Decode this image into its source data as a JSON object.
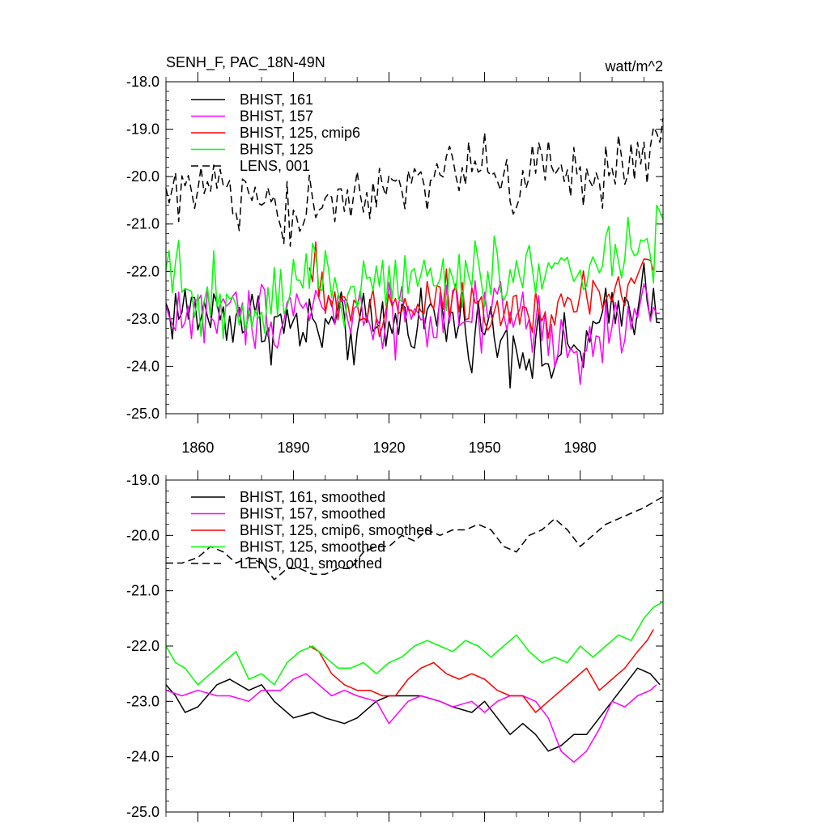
{
  "chart_data": [
    {
      "type": "line",
      "title": "SENH_F, PAC_18N-49N",
      "units_label": "watt/m^2",
      "xlim": [
        1850,
        2006
      ],
      "ylim": [
        -25.0,
        -18.0
      ],
      "y_ticks": [
        -25.0,
        -24.0,
        -23.0,
        -22.0,
        -21.0,
        -20.0,
        -19.0,
        -18.0
      ],
      "y_tick_labels": [
        "-25.0",
        "-24.0",
        "-23.0",
        "-22.0",
        "-21.0",
        "-20.0",
        "-19.0",
        "-18.0"
      ],
      "x_ticks": [
        1860,
        1890,
        1920,
        1950,
        1980
      ],
      "x_tick_labels": [
        "1860",
        "1890",
        "1920",
        "1950",
        "1980"
      ],
      "grid": false,
      "legend_position": "top-left",
      "series": [
        {
          "name": "BHIST, 161",
          "color": "#000000",
          "dash": "solid",
          "start": 1850,
          "end": 2005,
          "levels": [
            [
              1850,
              -22.8
            ],
            [
              1870,
              -22.9
            ],
            [
              1890,
              -23.2
            ],
            [
              1910,
              -23.3
            ],
            [
              1930,
              -22.9
            ],
            [
              1950,
              -23.2
            ],
            [
              1960,
              -23.5
            ],
            [
              1970,
              -23.9
            ],
            [
              1980,
              -23.6
            ],
            [
              1990,
              -23.0
            ],
            [
              2000,
              -22.4
            ],
            [
              2005,
              -22.7
            ]
          ],
          "amplitude": 0.5
        },
        {
          "name": "BHIST, 157",
          "color": "#ff00ff",
          "dash": "solid",
          "start": 1850,
          "end": 2005,
          "levels": [
            [
              1850,
              -22.9
            ],
            [
              1880,
              -22.9
            ],
            [
              1895,
              -22.6
            ],
            [
              1910,
              -22.9
            ],
            [
              1930,
              -22.9
            ],
            [
              1950,
              -23.1
            ],
            [
              1960,
              -22.9
            ],
            [
              1970,
              -23.3
            ],
            [
              1978,
              -24.0
            ],
            [
              1990,
              -23.2
            ],
            [
              2005,
              -22.8
            ]
          ],
          "amplitude": 0.5
        },
        {
          "name": "BHIST, 125, cmip6",
          "color": "#ff0000",
          "dash": "solid",
          "start": 1895,
          "end": 2003,
          "levels": [
            [
              1895,
              -22.1
            ],
            [
              1905,
              -22.7
            ],
            [
              1920,
              -22.9
            ],
            [
              1935,
              -22.4
            ],
            [
              1950,
              -22.6
            ],
            [
              1965,
              -23.1
            ],
            [
              1980,
              -22.5
            ],
            [
              1990,
              -22.6
            ],
            [
              2003,
              -21.7
            ]
          ],
          "amplitude": 0.45
        },
        {
          "name": "BHIST, 125",
          "color": "#00ff00",
          "dash": "solid",
          "start": 1850,
          "end": 2006,
          "levels": [
            [
              1850,
              -22.2
            ],
            [
              1860,
              -22.6
            ],
            [
              1880,
              -22.6
            ],
            [
              1895,
              -22.0
            ],
            [
              1910,
              -22.5
            ],
            [
              1930,
              -22.1
            ],
            [
              1950,
              -22.0
            ],
            [
              1970,
              -22.0
            ],
            [
              1980,
              -22.1
            ],
            [
              1995,
              -21.7
            ],
            [
              2006,
              -21.2
            ]
          ],
          "amplitude": 0.5
        },
        {
          "name": "LENS, 001",
          "color": "#000000",
          "dash": "dashed",
          "start": 1850,
          "end": 2006,
          "levels": [
            [
              1850,
              -20.5
            ],
            [
              1865,
              -20.2
            ],
            [
              1885,
              -20.8
            ],
            [
              1905,
              -20.6
            ],
            [
              1930,
              -20.0
            ],
            [
              1950,
              -19.8
            ],
            [
              1960,
              -20.3
            ],
            [
              1970,
              -19.7
            ],
            [
              1980,
              -20.2
            ],
            [
              1995,
              -19.6
            ],
            [
              2006,
              -19.3
            ]
          ],
          "amplitude": 0.45
        }
      ]
    },
    {
      "type": "line",
      "xlim": [
        1850,
        2006
      ],
      "ylim": [
        -25.0,
        -19.0
      ],
      "y_ticks": [
        -25.0,
        -24.0,
        -23.0,
        -22.0,
        -21.0,
        -20.0,
        -19.0
      ],
      "y_tick_labels": [
        "-25.0",
        "-24.0",
        "-23.0",
        "-22.0",
        "-21.0",
        "-20.0",
        "-19.0"
      ],
      "x_ticks": [
        1860,
        1890,
        1920,
        1950,
        1980
      ],
      "grid": false,
      "legend_position": "top-left",
      "series": [
        {
          "name": "BHIST, 161, smoothed",
          "color": "#000000",
          "dash": "solid",
          "points": [
            [
              1850,
              -22.7
            ],
            [
              1853,
              -22.9
            ],
            [
              1856,
              -23.2
            ],
            [
              1860,
              -23.1
            ],
            [
              1866,
              -22.7
            ],
            [
              1870,
              -22.6
            ],
            [
              1876,
              -22.8
            ],
            [
              1880,
              -22.7
            ],
            [
              1884,
              -23.0
            ],
            [
              1890,
              -23.3
            ],
            [
              1896,
              -23.2
            ],
            [
              1900,
              -23.3
            ],
            [
              1906,
              -23.4
            ],
            [
              1910,
              -23.3
            ],
            [
              1916,
              -23.0
            ],
            [
              1920,
              -22.9
            ],
            [
              1926,
              -22.9
            ],
            [
              1930,
              -22.9
            ],
            [
              1936,
              -23.0
            ],
            [
              1940,
              -23.1
            ],
            [
              1946,
              -23.2
            ],
            [
              1950,
              -23.0
            ],
            [
              1954,
              -23.3
            ],
            [
              1958,
              -23.6
            ],
            [
              1962,
              -23.4
            ],
            [
              1966,
              -23.6
            ],
            [
              1970,
              -23.9
            ],
            [
              1974,
              -23.8
            ],
            [
              1978,
              -23.6
            ],
            [
              1982,
              -23.6
            ],
            [
              1986,
              -23.3
            ],
            [
              1990,
              -23.0
            ],
            [
              1994,
              -22.7
            ],
            [
              1998,
              -22.4
            ],
            [
              2002,
              -22.5
            ],
            [
              2005,
              -22.7
            ]
          ]
        },
        {
          "name": "BHIST, 157, smoothed",
          "color": "#ff00ff",
          "dash": "solid",
          "points": [
            [
              1850,
              -22.8
            ],
            [
              1855,
              -22.9
            ],
            [
              1860,
              -22.8
            ],
            [
              1866,
              -22.9
            ],
            [
              1870,
              -22.9
            ],
            [
              1876,
              -23.0
            ],
            [
              1880,
              -22.8
            ],
            [
              1886,
              -22.8
            ],
            [
              1890,
              -22.6
            ],
            [
              1894,
              -22.5
            ],
            [
              1898,
              -22.7
            ],
            [
              1902,
              -22.9
            ],
            [
              1906,
              -22.8
            ],
            [
              1910,
              -22.9
            ],
            [
              1916,
              -23.0
            ],
            [
              1920,
              -23.4
            ],
            [
              1926,
              -23.0
            ],
            [
              1930,
              -22.9
            ],
            [
              1936,
              -23.0
            ],
            [
              1940,
              -23.1
            ],
            [
              1946,
              -23.0
            ],
            [
              1950,
              -23.2
            ],
            [
              1954,
              -23.0
            ],
            [
              1958,
              -22.9
            ],
            [
              1962,
              -22.9
            ],
            [
              1966,
              -23.0
            ],
            [
              1970,
              -23.3
            ],
            [
              1974,
              -23.9
            ],
            [
              1978,
              -24.1
            ],
            [
              1982,
              -23.9
            ],
            [
              1986,
              -23.5
            ],
            [
              1990,
              -23.0
            ],
            [
              1994,
              -23.1
            ],
            [
              1998,
              -22.9
            ],
            [
              2002,
              -22.8
            ],
            [
              2004,
              -22.7
            ]
          ]
        },
        {
          "name": "BHIST, 125, cmip6, smoothed",
          "color": "#ff0000",
          "dash": "solid",
          "points": [
            [
              1895,
              -22.0
            ],
            [
              1898,
              -22.1
            ],
            [
              1902,
              -22.5
            ],
            [
              1906,
              -22.7
            ],
            [
              1910,
              -22.8
            ],
            [
              1914,
              -22.8
            ],
            [
              1918,
              -22.9
            ],
            [
              1922,
              -22.9
            ],
            [
              1926,
              -22.6
            ],
            [
              1930,
              -22.4
            ],
            [
              1934,
              -22.3
            ],
            [
              1938,
              -22.5
            ],
            [
              1942,
              -22.6
            ],
            [
              1946,
              -22.5
            ],
            [
              1950,
              -22.6
            ],
            [
              1954,
              -22.8
            ],
            [
              1958,
              -22.9
            ],
            [
              1962,
              -22.9
            ],
            [
              1966,
              -23.2
            ],
            [
              1970,
              -23.0
            ],
            [
              1974,
              -22.8
            ],
            [
              1978,
              -22.6
            ],
            [
              1982,
              -22.4
            ],
            [
              1986,
              -22.8
            ],
            [
              1990,
              -22.6
            ],
            [
              1994,
              -22.4
            ],
            [
              1998,
              -22.1
            ],
            [
              2001,
              -21.9
            ],
            [
              2003,
              -21.7
            ]
          ]
        },
        {
          "name": "BHIST, 125, smoothed",
          "color": "#00ff00",
          "dash": "solid",
          "points": [
            [
              1850,
              -22.0
            ],
            [
              1853,
              -22.3
            ],
            [
              1856,
              -22.4
            ],
            [
              1860,
              -22.7
            ],
            [
              1864,
              -22.5
            ],
            [
              1868,
              -22.3
            ],
            [
              1872,
              -22.1
            ],
            [
              1876,
              -22.6
            ],
            [
              1880,
              -22.5
            ],
            [
              1884,
              -22.7
            ],
            [
              1888,
              -22.3
            ],
            [
              1892,
              -22.1
            ],
            [
              1896,
              -22.0
            ],
            [
              1900,
              -22.2
            ],
            [
              1904,
              -22.4
            ],
            [
              1908,
              -22.4
            ],
            [
              1912,
              -22.3
            ],
            [
              1916,
              -22.5
            ],
            [
              1920,
              -22.3
            ],
            [
              1924,
              -22.2
            ],
            [
              1928,
              -22.0
            ],
            [
              1932,
              -21.9
            ],
            [
              1936,
              -22.0
            ],
            [
              1940,
              -22.1
            ],
            [
              1944,
              -21.9
            ],
            [
              1948,
              -22.0
            ],
            [
              1952,
              -22.2
            ],
            [
              1956,
              -22.0
            ],
            [
              1960,
              -21.8
            ],
            [
              1964,
              -22.1
            ],
            [
              1968,
              -22.3
            ],
            [
              1972,
              -22.2
            ],
            [
              1976,
              -22.3
            ],
            [
              1980,
              -22.0
            ],
            [
              1984,
              -22.2
            ],
            [
              1988,
              -22.0
            ],
            [
              1992,
              -21.8
            ],
            [
              1996,
              -21.9
            ],
            [
              2000,
              -21.5
            ],
            [
              2003,
              -21.3
            ],
            [
              2006,
              -21.2
            ]
          ]
        },
        {
          "name": "LENS, 001, smoothed",
          "color": "#000000",
          "dash": "dashed",
          "points": [
            [
              1850,
              -20.5
            ],
            [
              1855,
              -20.5
            ],
            [
              1860,
              -20.4
            ],
            [
              1864,
              -20.2
            ],
            [
              1868,
              -20.3
            ],
            [
              1872,
              -20.5
            ],
            [
              1876,
              -20.4
            ],
            [
              1880,
              -20.5
            ],
            [
              1884,
              -20.8
            ],
            [
              1888,
              -20.6
            ],
            [
              1892,
              -20.6
            ],
            [
              1896,
              -20.7
            ],
            [
              1900,
              -20.7
            ],
            [
              1904,
              -20.6
            ],
            [
              1908,
              -20.6
            ],
            [
              1912,
              -20.3
            ],
            [
              1916,
              -20.2
            ],
            [
              1920,
              -20.2
            ],
            [
              1924,
              -20.0
            ],
            [
              1928,
              -20.1
            ],
            [
              1932,
              -19.9
            ],
            [
              1936,
              -20.0
            ],
            [
              1940,
              -19.9
            ],
            [
              1944,
              -19.9
            ],
            [
              1948,
              -19.8
            ],
            [
              1952,
              -19.9
            ],
            [
              1956,
              -20.2
            ],
            [
              1960,
              -20.3
            ],
            [
              1964,
              -20.0
            ],
            [
              1968,
              -19.9
            ],
            [
              1972,
              -19.7
            ],
            [
              1976,
              -19.9
            ],
            [
              1980,
              -20.2
            ],
            [
              1984,
              -20.0
            ],
            [
              1988,
              -19.8
            ],
            [
              1992,
              -19.7
            ],
            [
              1996,
              -19.6
            ],
            [
              2000,
              -19.5
            ],
            [
              2003,
              -19.4
            ],
            [
              2006,
              -19.3
            ]
          ]
        }
      ]
    }
  ]
}
